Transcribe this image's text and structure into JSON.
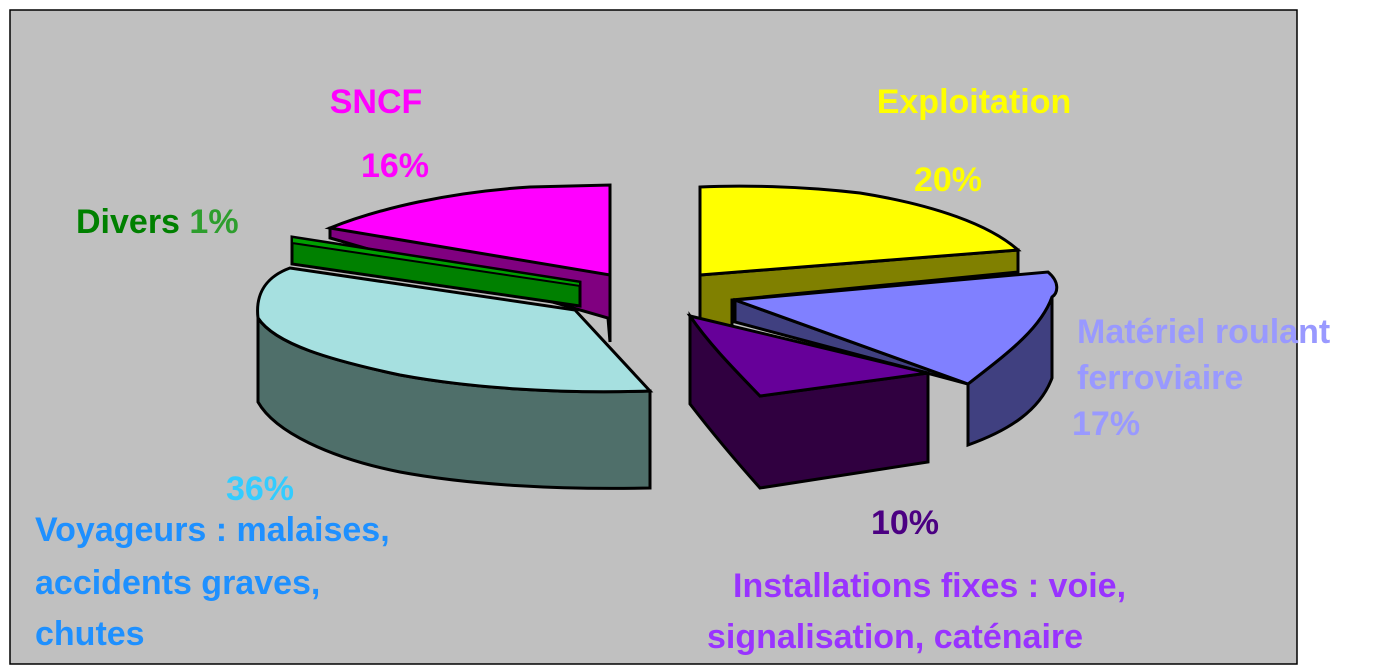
{
  "chart_data": {
    "type": "pie",
    "style": "3d-exploded",
    "slices": [
      {
        "label": "SNCF",
        "value": 16,
        "value_label": "16%",
        "color": "#ff00ff",
        "label_color": "#ff00ff"
      },
      {
        "label": "Exploitation",
        "value": 20,
        "value_label": "20%",
        "color": "#ffff00",
        "label_color": "#ffff00"
      },
      {
        "label": "Matériel roulant ferroviaire",
        "value": 17,
        "value_label": "17%",
        "color": "#8080ff",
        "label_color": "#9999ff"
      },
      {
        "label": "Installations fixes :  voie, signalisation, caténaire",
        "value": 10,
        "value_label": "10%",
        "color": "#660099",
        "label_color": "#9933ff"
      },
      {
        "label": "Voyageurs : malaises, accidents graves, chutes",
        "value": 36,
        "value_label": "36%",
        "color": "#a6e0e0",
        "label_color": "#1e90ff"
      },
      {
        "label": "Divers",
        "value": 1,
        "value_label": "1%",
        "color": "#008000",
        "label_color": "#008000"
      }
    ]
  },
  "colors": {
    "background": "#c0c0c0",
    "frame": "#000000",
    "voyageurs_value": "#33ccff",
    "installations_value": "#4b0082"
  }
}
